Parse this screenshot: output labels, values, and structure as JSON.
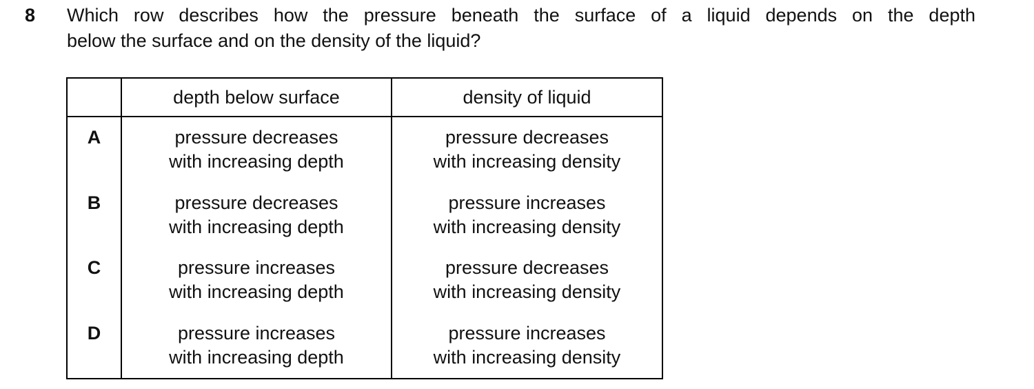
{
  "question": {
    "number": "8",
    "lines": [
      "Which row describes how the pressure beneath the surface of a liquid depends on the depth",
      "below the surface and on the density of the liquid?"
    ]
  },
  "table": {
    "header": [
      "depth below surface",
      "density of liquid"
    ],
    "rows": [
      {
        "label": "A",
        "cells": [
          [
            "pressure decreases",
            "with increasing depth"
          ],
          [
            "pressure decreases",
            "with increasing density"
          ]
        ]
      },
      {
        "label": "B",
        "cells": [
          [
            "pressure decreases",
            "with increasing depth"
          ],
          [
            "pressure increases",
            "with increasing density"
          ]
        ]
      },
      {
        "label": "C",
        "cells": [
          [
            "pressure increases",
            "with increasing depth"
          ],
          [
            "pressure decreases",
            "with increasing density"
          ]
        ]
      },
      {
        "label": "D",
        "cells": [
          [
            "pressure increases",
            "with increasing depth"
          ],
          [
            "pressure increases",
            "with increasing density"
          ]
        ]
      }
    ]
  }
}
